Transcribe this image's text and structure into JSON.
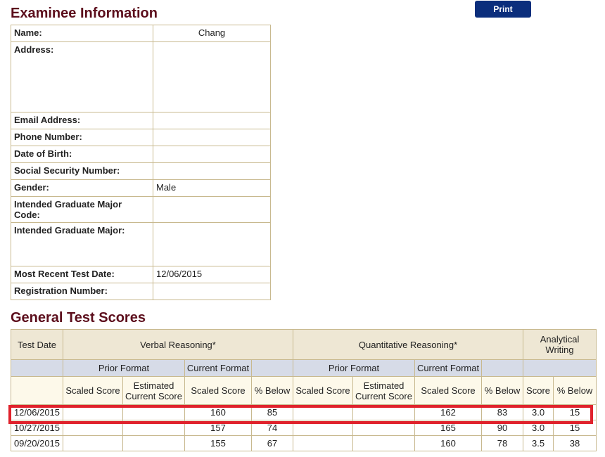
{
  "examinee": {
    "title": "Examinee Information",
    "print_label": "Print",
    "fields": {
      "name": {
        "label": "Name:",
        "value": "Chang"
      },
      "address": {
        "label": "Address:",
        "value": ""
      },
      "email": {
        "label": "Email Address:",
        "value": ""
      },
      "phone": {
        "label": "Phone Number:",
        "value": ""
      },
      "dob": {
        "label": "Date of Birth:",
        "value": ""
      },
      "ssn": {
        "label": "Social Security Number:",
        "value": ""
      },
      "gender": {
        "label": "Gender:",
        "value": "Male"
      },
      "major_code": {
        "label": "Intended Graduate Major Code:",
        "value": ""
      },
      "major": {
        "label": "Intended Graduate Major:",
        "value": ""
      },
      "recent_date": {
        "label": "Most Recent Test Date:",
        "value": "12/06/2015"
      },
      "registration": {
        "label": "Registration Number:",
        "value": ""
      }
    }
  },
  "scores": {
    "title": "General Test Scores",
    "headers": {
      "test_date": "Test Date",
      "verbal": "Verbal Reasoning*",
      "quant": "Quantitative Reasoning*",
      "writing": "Analytical Writing",
      "prior_format": "Prior Format",
      "current_format": "Current Format",
      "scaled_score": "Scaled Score",
      "estimated_current": "Estimated Current Score",
      "pct_below": "% Below",
      "score": "Score"
    },
    "rows": [
      {
        "date": "12/06/2015",
        "v_prior": "",
        "v_est": "",
        "v_scaled": "160",
        "v_pct": "85",
        "q_prior": "",
        "q_est": "",
        "q_scaled": "162",
        "q_pct": "83",
        "w_score": "3.0",
        "w_pct": "15"
      },
      {
        "date": "10/27/2015",
        "v_prior": "",
        "v_est": "",
        "v_scaled": "157",
        "v_pct": "74",
        "q_prior": "",
        "q_est": "",
        "q_scaled": "165",
        "q_pct": "90",
        "w_score": "3.0",
        "w_pct": "15"
      },
      {
        "date": "09/20/2015",
        "v_prior": "",
        "v_est": "",
        "v_scaled": "155",
        "v_pct": "67",
        "q_prior": "",
        "q_est": "",
        "q_scaled": "160",
        "q_pct": "78",
        "w_score": "3.5",
        "w_pct": "38"
      }
    ]
  },
  "colors": {
    "title": "#5c0e1c",
    "print_button": "#0b2e7c",
    "highlight": "#e0222c",
    "border": "#c8b98f"
  }
}
